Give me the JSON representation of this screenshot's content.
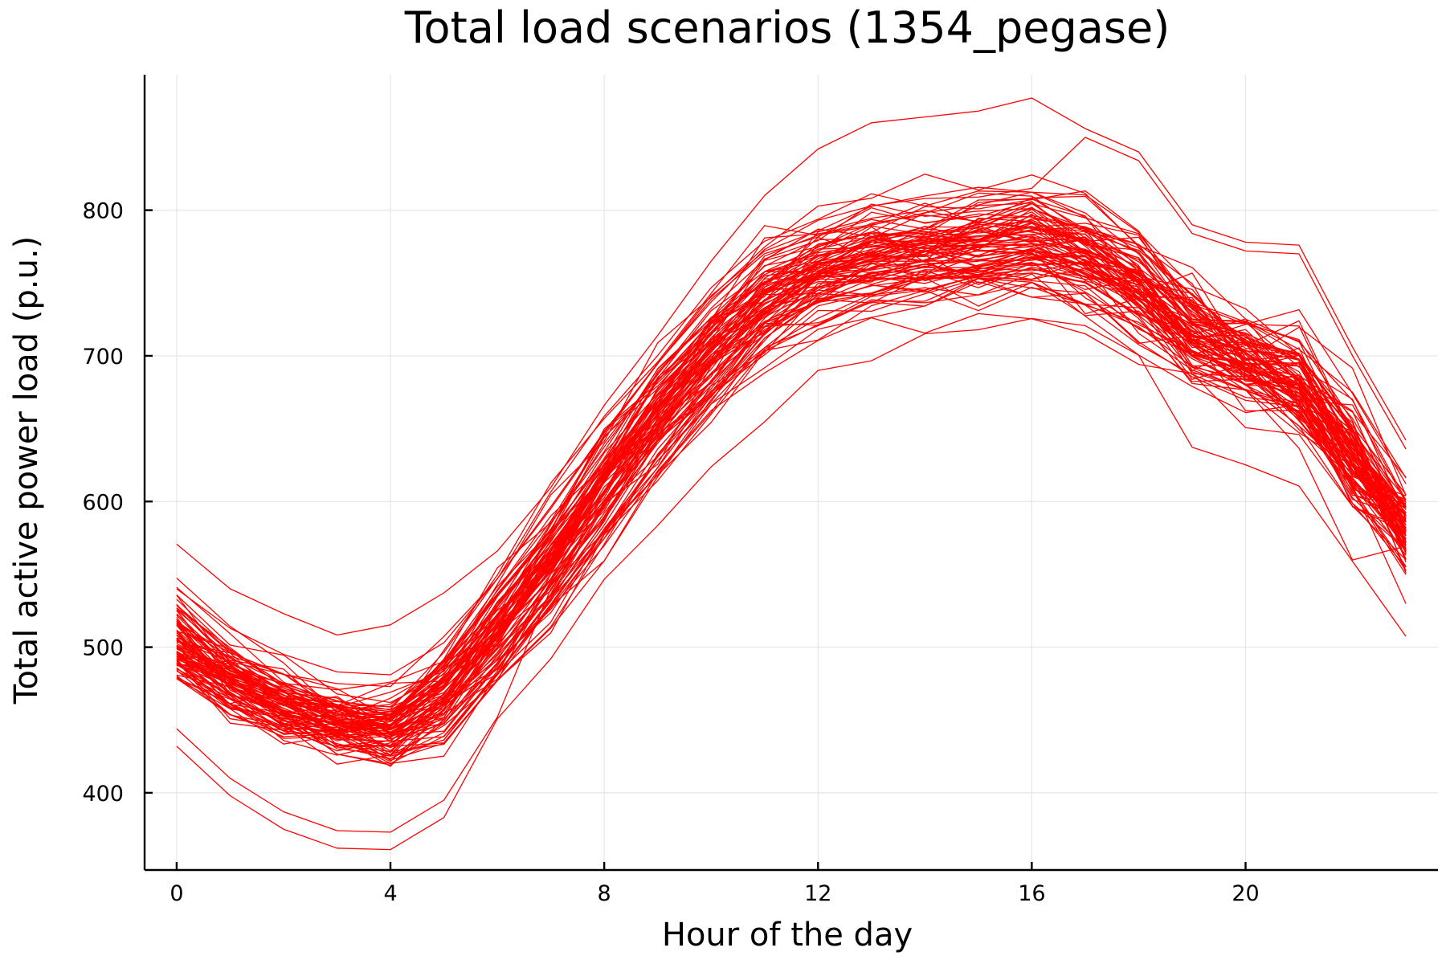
{
  "chart_data": {
    "type": "line",
    "title": "Total load scenarios (1354_pegase)",
    "xlabel": "Hour of the day",
    "ylabel": "Total active power load (p.u.)",
    "xlim": [
      -0.6,
      23.6
    ],
    "ylim": [
      347,
      893
    ],
    "xticks": [
      0,
      4,
      8,
      12,
      16,
      20
    ],
    "yticks": [
      400,
      500,
      600,
      700,
      800
    ],
    "xtick_labels": [
      "0",
      "4",
      "8",
      "12",
      "16",
      "20"
    ],
    "ytick_labels": [
      "400",
      "500",
      "600",
      "700",
      "800"
    ],
    "grid": true,
    "legend": "none",
    "line_color": "#ff0000",
    "scenario_count": 100,
    "x": [
      0,
      1,
      2,
      3,
      4,
      5,
      6,
      7,
      8,
      9,
      10,
      11,
      12,
      13,
      14,
      15,
      16,
      17,
      18,
      19,
      20,
      21,
      22,
      23
    ],
    "mean_profile": [
      505,
      478,
      460,
      448,
      446,
      468,
      512,
      560,
      612,
      660,
      702,
      738,
      758,
      768,
      773,
      774,
      780,
      770,
      748,
      718,
      700,
      682,
      632,
      583
    ],
    "envelope_min": [
      432,
      398,
      375,
      362,
      361,
      383,
      440,
      480,
      535,
      570,
      610,
      640,
      678,
      684,
      705,
      708,
      716,
      712,
      692,
      623,
      612,
      598,
      546,
      494
    ],
    "envelope_max": [
      578,
      547,
      530,
      515,
      523,
      545,
      572,
      615,
      672,
      720,
      765,
      810,
      842,
      860,
      864,
      868,
      877,
      856,
      840,
      790,
      778,
      776,
      706,
      642
    ]
  }
}
